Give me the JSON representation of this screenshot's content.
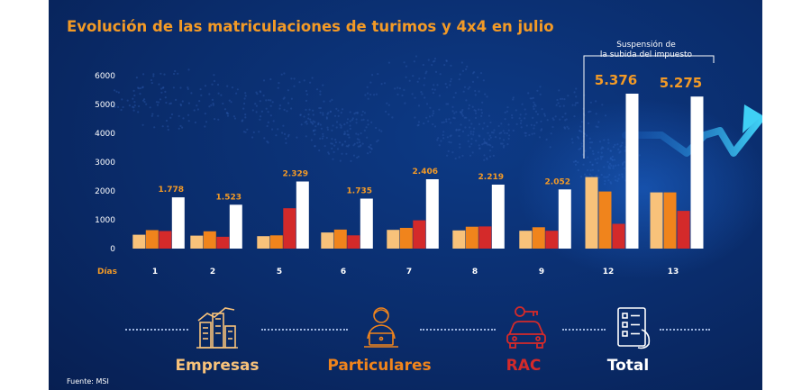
{
  "chart_data": {
    "type": "bar",
    "title": "Evolución de las matriculaciones de turimos y 4x4 en julio",
    "x_axis_label": "Días",
    "categories": [
      "1",
      "2",
      "5",
      "6",
      "7",
      "8",
      "9",
      "12",
      "13"
    ],
    "ylim": [
      0,
      6000
    ],
    "yticks": [
      "0",
      "1000",
      "2000",
      "3000",
      "4000",
      "5000",
      "6000"
    ],
    "grid": false,
    "series": [
      {
        "name": "Empresas",
        "color": "#f8c27a",
        "values": [
          480,
          450,
          430,
          560,
          650,
          630,
          620,
          2480,
          1950
        ]
      },
      {
        "name": "Particulares",
        "color": "#f0841c",
        "values": [
          640,
          600,
          460,
          660,
          720,
          760,
          740,
          1980,
          1950
        ]
      },
      {
        "name": "RAC",
        "color": "#d42a2a",
        "values": [
          610,
          410,
          1400,
          460,
          980,
          770,
          620,
          860,
          1310
        ]
      },
      {
        "name": "Total",
        "color": "#ffffff",
        "values": [
          1778,
          1523,
          2329,
          1735,
          2406,
          2219,
          2052,
          5376,
          5275
        ]
      }
    ],
    "total_labels": [
      "1.778",
      "1.523",
      "2.329",
      "1.735",
      "2.406",
      "2.219",
      "2.052",
      "5.376",
      "5.275"
    ],
    "annotation": {
      "line1": "Suspensión de",
      "line2": "la subida del impuesto"
    }
  },
  "legend": [
    {
      "name": "Empresas",
      "color": "#f8c27a",
      "icon": "buildings-chart-icon"
    },
    {
      "name": "Particulares",
      "color": "#f0841c",
      "icon": "person-laptop-icon"
    },
    {
      "name": "RAC",
      "color": "#d42a2a",
      "icon": "car-key-icon"
    },
    {
      "name": "Total",
      "color": "#ffffff",
      "icon": "checklist-icon"
    }
  ],
  "source": "Fuente: MSI"
}
